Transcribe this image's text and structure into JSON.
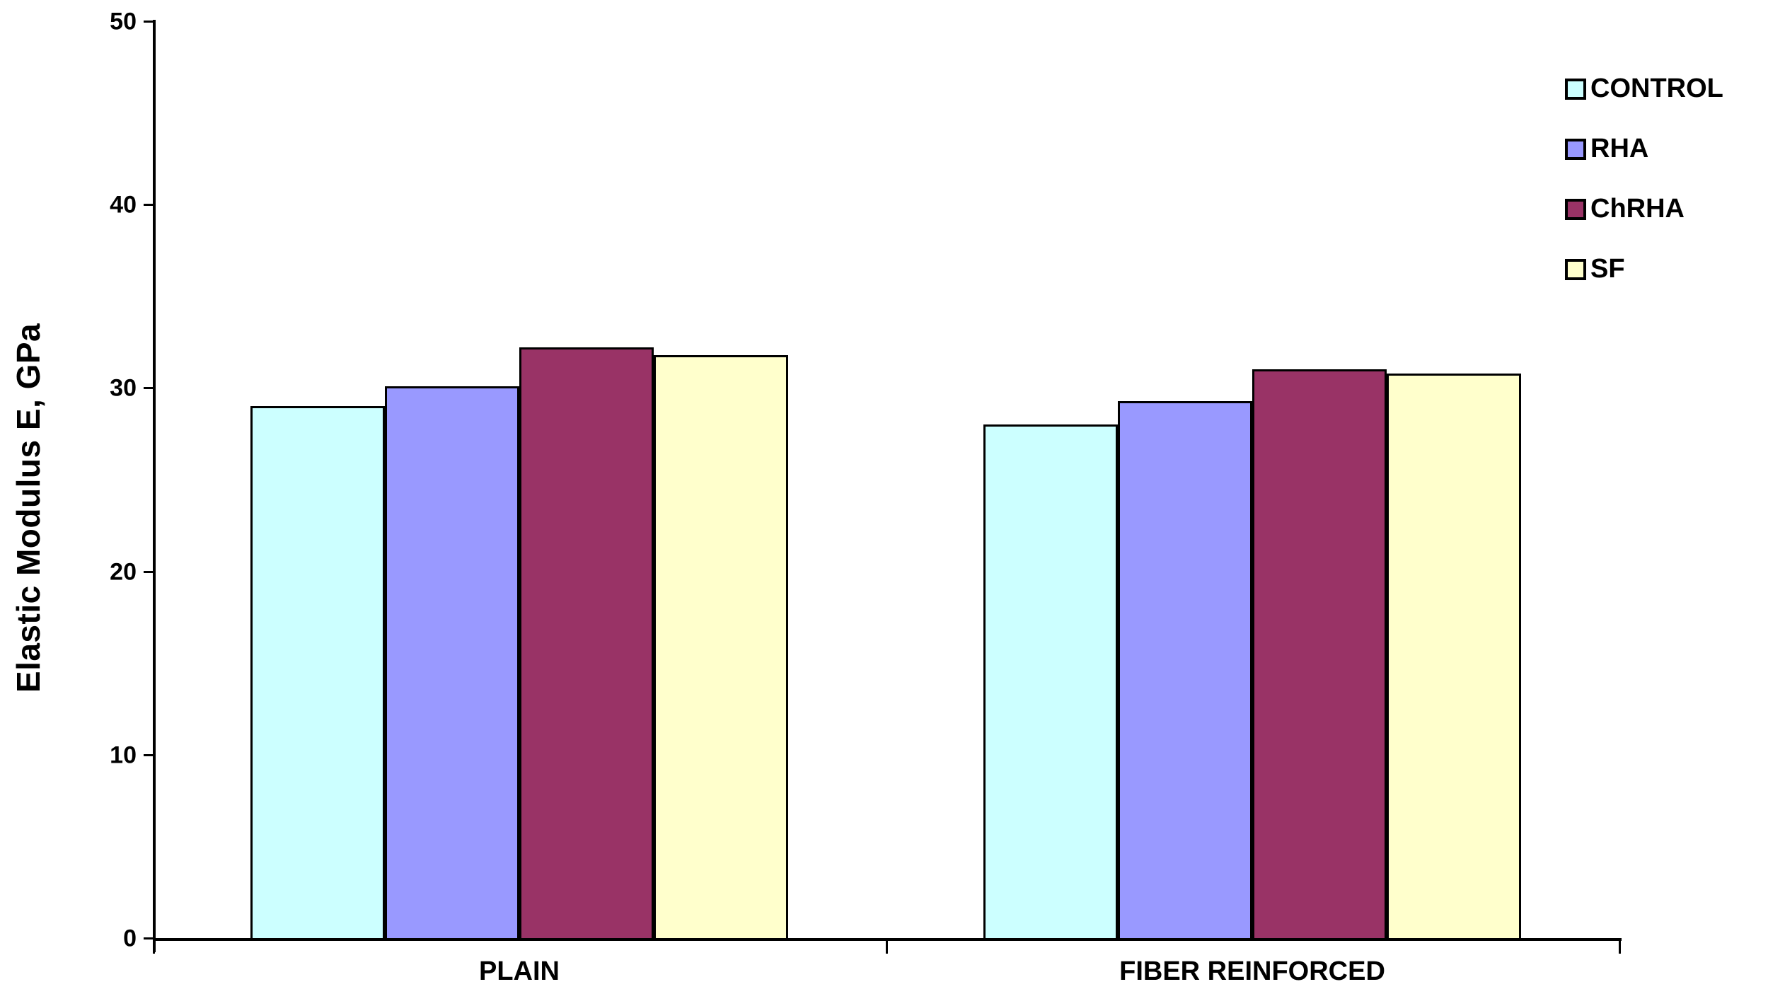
{
  "chart_data": {
    "type": "bar",
    "title": "",
    "ylabel": "Elastic Modulus  E, GPa",
    "xlabel": "",
    "ylim": [
      0,
      50
    ],
    "yticks": [
      0,
      10,
      20,
      30,
      40,
      50
    ],
    "categories": [
      "PLAIN",
      "FIBER REINFORCED"
    ],
    "series": [
      {
        "name": "CONTROL",
        "color": "#CCFFFF",
        "values": [
          29.0,
          28.0
        ]
      },
      {
        "name": "RHA",
        "color": "#9999FF",
        "values": [
          30.1,
          29.3
        ]
      },
      {
        "name": "ChRHA",
        "color": "#993366",
        "values": [
          32.2,
          31.0
        ]
      },
      {
        "name": "SF",
        "color": "#FFFFCC",
        "values": [
          31.8,
          30.8
        ]
      }
    ],
    "legend_position": "top-right",
    "grid": false,
    "background_color": "#FFFFFF",
    "axis_color": "#000000",
    "bar_border_color": "#000000",
    "text_color": "#000000"
  }
}
